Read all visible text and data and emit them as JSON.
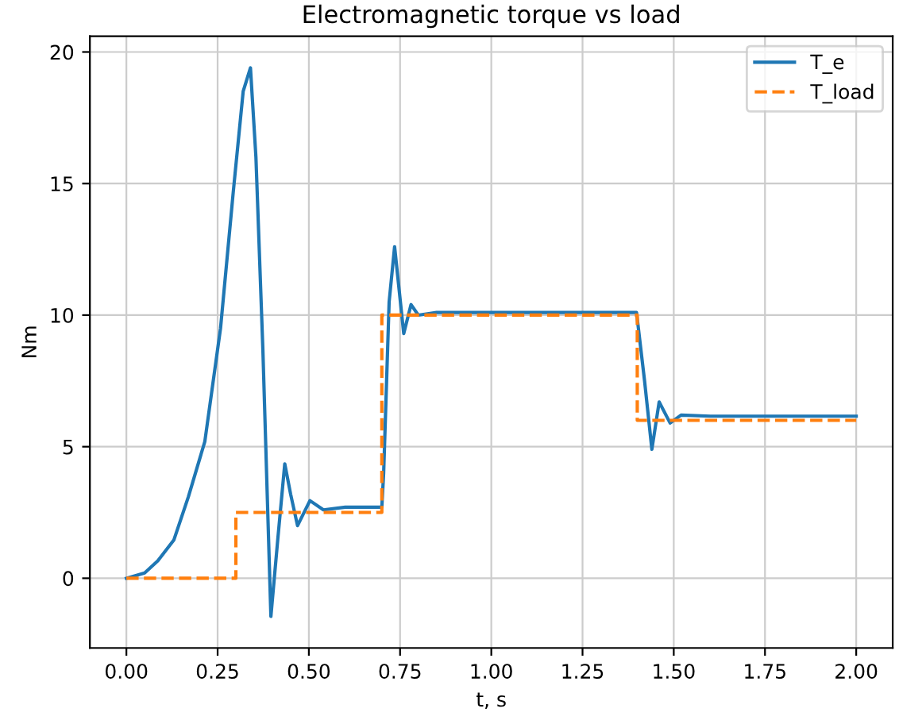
{
  "chart_data": {
    "type": "line",
    "title": "Electromagnetic torque vs load",
    "xlabel": "t, s",
    "ylabel": "Nm",
    "series": [
      {
        "name": "T_e",
        "color": "#1f77b4",
        "line_style": "solid",
        "x": [
          0,
          0.05,
          0.086,
          0.13,
          0.17,
          0.215,
          0.258,
          0.293,
          0.32,
          0.34,
          0.355,
          0.374,
          0.396,
          0.415,
          0.434,
          0.45,
          0.469,
          0.503,
          0.54,
          0.6,
          0.7,
          0.705,
          0.72,
          0.735,
          0.76,
          0.78,
          0.8,
          0.85,
          1.0,
          1.2,
          1.398,
          1.42,
          1.44,
          1.46,
          1.49,
          1.52,
          1.6,
          1.8,
          2.0
        ],
        "values": [
          0,
          0.2,
          0.66,
          1.45,
          3.1,
          5.2,
          9.5,
          14.7,
          18.5,
          19.4,
          16,
          8.7,
          -1.45,
          1.5,
          4.35,
          3.2,
          2.0,
          2.95,
          2.6,
          2.7,
          2.7,
          4,
          10.5,
          12.6,
          9.3,
          10.4,
          10.0,
          10.1,
          10.1,
          10.1,
          10.1,
          7.5,
          4.9,
          6.7,
          5.9,
          6.2,
          6.16,
          6.16,
          6.16
        ]
      },
      {
        "name": "T_load",
        "color": "#ff7f0e",
        "line_style": "dashed",
        "x": [
          0,
          0.3,
          0.3,
          0.7,
          0.7,
          1.4,
          1.4,
          2.0
        ],
        "values": [
          0,
          0,
          2.5,
          2.5,
          10,
          10,
          6,
          6
        ]
      }
    ],
    "xlim": [
      -0.1,
      2.1
    ],
    "ylim": [
      -2.65,
      20.6
    ],
    "xticks": [
      {
        "value": 0,
        "label": "0.00"
      },
      {
        "value": 0.25,
        "label": "0.25"
      },
      {
        "value": 0.5,
        "label": "0.50"
      },
      {
        "value": 0.75,
        "label": "0.75"
      },
      {
        "value": 1.0,
        "label": "1.00"
      },
      {
        "value": 1.25,
        "label": "1.25"
      },
      {
        "value": 1.5,
        "label": "1.50"
      },
      {
        "value": 1.75,
        "label": "1.75"
      },
      {
        "value": 2.0,
        "label": "2.00"
      }
    ],
    "yticks": [
      0,
      5,
      10,
      15,
      20
    ],
    "grid": true,
    "legend": "top right",
    "marker": "none"
  }
}
